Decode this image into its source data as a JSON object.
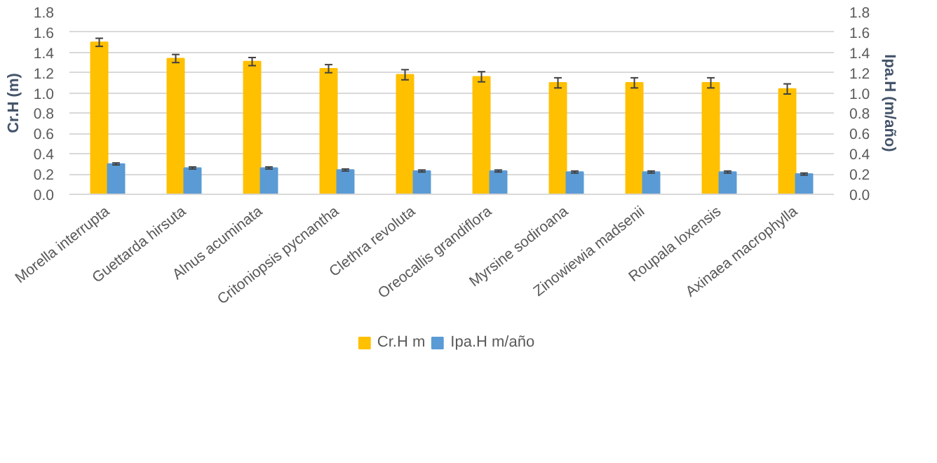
{
  "chart_data": {
    "type": "bar",
    "categories": [
      "Morella interrupta",
      "Guettarda hirsuta",
      "Alnus acuminata",
      "Critoniopsis pycnantha",
      "Clethra revoluta",
      "Oreocallis grandiflora",
      "Myrsine sodiroana",
      "Zinowiewia madsenii",
      "Roupala loxensis",
      "Axinaea macrophylla"
    ],
    "series": [
      {
        "name": "Cr.H m",
        "color": "#ffc000",
        "values": [
          1.5,
          1.34,
          1.31,
          1.24,
          1.18,
          1.16,
          1.1,
          1.1,
          1.1,
          1.04
        ],
        "errors": [
          0.04,
          0.04,
          0.04,
          0.04,
          0.05,
          0.05,
          0.05,
          0.05,
          0.05,
          0.05
        ]
      },
      {
        "name": "Ipa.H m/año",
        "color": "#5b9bd5",
        "axis": "y2",
        "values": [
          0.3,
          0.26,
          0.26,
          0.24,
          0.23,
          0.23,
          0.22,
          0.22,
          0.22,
          0.2
        ],
        "errors": [
          0.01,
          0.01,
          0.01,
          0.01,
          0.01,
          0.01,
          0.01,
          0.01,
          0.01,
          0.01
        ]
      }
    ],
    "ylabel": "Cr.H (m)",
    "y2label": "Ipa.H (m/año)",
    "ylim": [
      0,
      1.8
    ],
    "yticks": [
      {
        "value": 0,
        "label": "0.0"
      },
      {
        "value": 0.2,
        "label": "0.2"
      },
      {
        "value": 0.4,
        "label": "0.4"
      },
      {
        "value": 0.6,
        "label": "0.6"
      },
      {
        "value": 0.8,
        "label": "0.8"
      },
      {
        "value": 1.0,
        "label": "1.0"
      },
      {
        "value": 1.2,
        "label": "1.2"
      },
      {
        "value": 1.4,
        "label": "1.4"
      },
      {
        "value": 1.6,
        "label": "1.6"
      },
      {
        "value": 1.8,
        "label": "1.8"
      }
    ],
    "y2lim": [
      0,
      1.8
    ],
    "y2ticks": [
      {
        "value": 0,
        "label": "0.0"
      },
      {
        "value": 0.2,
        "label": "0.2"
      },
      {
        "value": 0.4,
        "label": "0.4"
      },
      {
        "value": 0.6,
        "label": "0.6"
      },
      {
        "value": 0.8,
        "label": "0.8"
      },
      {
        "value": 1.0,
        "label": "1.0"
      },
      {
        "value": 1.2,
        "label": "1.2"
      },
      {
        "value": 1.4,
        "label": "1.4"
      },
      {
        "value": 1.6,
        "label": "1.6"
      },
      {
        "value": 1.8,
        "label": "1.8"
      }
    ],
    "grid": "y",
    "legend": "bottom"
  }
}
